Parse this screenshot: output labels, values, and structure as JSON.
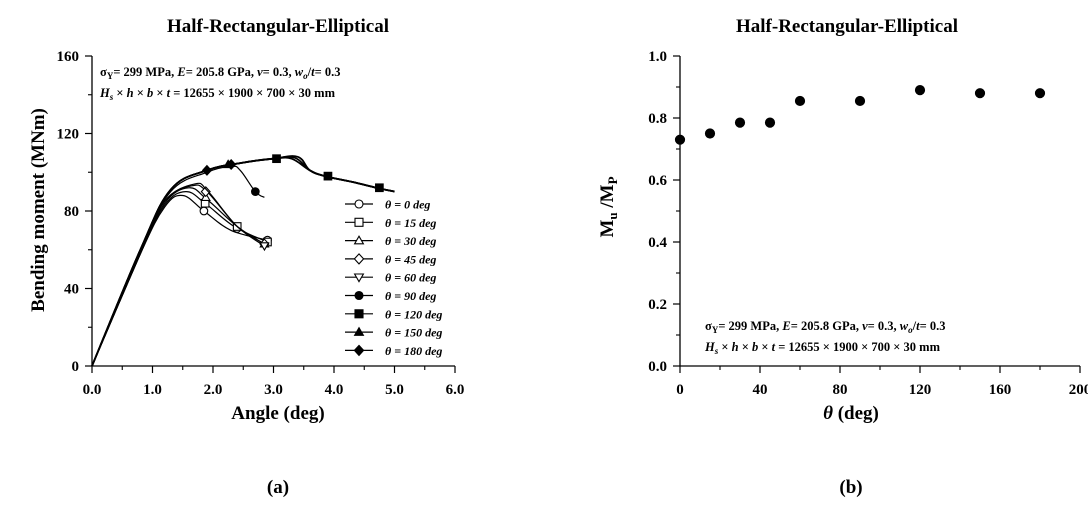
{
  "chart_data": [
    {
      "id": "a",
      "type": "line",
      "title": "Half-Rectangular-Elliptical",
      "xlabel": "Angle (deg)",
      "ylabel": "Bending moment (MNm)",
      "caption": "(a)",
      "xlim": [
        0,
        6
      ],
      "ylim": [
        0,
        160
      ],
      "xticks": [
        0,
        1,
        2,
        3,
        4,
        5,
        6
      ],
      "xtick_labels": [
        "0.0",
        "1.0",
        "2.0",
        "3.0",
        "4.0",
        "5.0",
        "6.0"
      ],
      "yticks": [
        0,
        40,
        80,
        120,
        160
      ],
      "ytick_labels": [
        "0",
        "40",
        "80",
        "120",
        "160"
      ],
      "annotation": [
        "σY= 299 MPa, E= 205.8 GPa, ν= 0.3, wo/t= 0.3",
        "Hs × h × b × t = 12655 × 1900 × 700 × 30 mm"
      ],
      "legend_position": "right",
      "series": [
        {
          "name": "θ = 0 deg",
          "marker": "circle-open",
          "x": [
            0,
            0.8,
            1.2,
            1.5,
            1.85,
            2.3,
            2.9
          ],
          "y": [
            0,
            58,
            82,
            88,
            80,
            70,
            65
          ],
          "marker_x": [
            1.85,
            2.4,
            2.9
          ],
          "marker_y": [
            80,
            71,
            65
          ]
        },
        {
          "name": "θ = 15 deg",
          "marker": "square-open",
          "x": [
            0,
            0.8,
            1.2,
            1.55,
            1.87,
            2.35,
            2.9
          ],
          "y": [
            0,
            58,
            83,
            90,
            84,
            72,
            64
          ],
          "marker_x": [
            1.87,
            2.4,
            2.9
          ],
          "marker_y": [
            84,
            72,
            64
          ]
        },
        {
          "name": "θ = 30 deg",
          "marker": "triangle-open",
          "x": [
            0,
            0.8,
            1.2,
            1.6,
            1.9,
            2.4,
            2.85
          ],
          "y": [
            0,
            58,
            84,
            92,
            86,
            72,
            63
          ],
          "marker_x": [
            1.88,
            2.85
          ],
          "marker_y": [
            87,
            63
          ]
        },
        {
          "name": "θ = 45 deg",
          "marker": "diamond-open",
          "x": [
            0,
            0.8,
            1.2,
            1.65,
            1.9,
            2.4,
            2.85
          ],
          "y": [
            0,
            58,
            85,
            93,
            90,
            72,
            63
          ],
          "marker_x": [
            1.88,
            2.85
          ],
          "marker_y": [
            90,
            63
          ]
        },
        {
          "name": "θ = 60 deg",
          "marker": "triangle-down-open",
          "x": [
            0,
            0.8,
            1.2,
            1.7,
            1.92,
            2.4,
            2.85
          ],
          "y": [
            0,
            58,
            85,
            94,
            90,
            72,
            62
          ],
          "marker_x": [
            2.85
          ],
          "marker_y": [
            62
          ]
        },
        {
          "name": "θ = 90 deg",
          "marker": "circle-filled",
          "x": [
            0,
            0.8,
            1.3,
            1.9,
            2.3,
            2.45,
            2.7,
            2.85
          ],
          "y": [
            0,
            60,
            90,
            100,
            103,
            101,
            90,
            87
          ],
          "marker_x": [
            2.7
          ],
          "marker_y": [
            90
          ]
        },
        {
          "name": "θ = 120 deg",
          "marker": "square-filled",
          "x": [
            0,
            0.8,
            1.3,
            1.9,
            2.5,
            3.0,
            3.3,
            3.6,
            3.85,
            4.3,
            4.7,
            5.0
          ],
          "y": [
            0,
            60,
            91,
            101,
            105,
            107,
            107,
            101,
            98,
            95,
            92,
            90
          ],
          "marker_x": [
            3.05,
            3.9,
            4.75
          ],
          "marker_y": [
            107,
            98,
            92
          ]
        },
        {
          "name": "θ = 150 deg",
          "marker": "triangle-filled",
          "x": [
            0,
            0.8,
            1.3,
            1.9,
            2.5,
            3.0,
            3.35,
            3.6,
            3.85,
            4.3,
            4.7,
            5.0
          ],
          "y": [
            0,
            60,
            91,
            101,
            105,
            107,
            107.5,
            101,
            98,
            95,
            92,
            90
          ],
          "marker_x": [
            2.25
          ],
          "marker_y": [
            104
          ]
        },
        {
          "name": "θ = 180 deg",
          "marker": "diamond-filled",
          "x": [
            0,
            0.8,
            1.3,
            1.9,
            2.5,
            3.0,
            3.4,
            3.6,
            3.85,
            4.3,
            4.7,
            5.0
          ],
          "y": [
            0,
            60,
            91,
            101,
            105,
            107,
            108,
            101,
            98,
            95,
            92,
            90
          ],
          "marker_x": [
            1.9,
            2.3
          ],
          "marker_y": [
            101,
            104
          ]
        }
      ]
    },
    {
      "id": "b",
      "type": "scatter",
      "title": "Half-Rectangular-Elliptical",
      "xlabel": "θ (deg)",
      "ylabel": "Mu /MP",
      "caption": "(b)",
      "xlim": [
        0,
        200
      ],
      "ylim": [
        0,
        1.0
      ],
      "xticks": [
        0,
        40,
        80,
        120,
        160,
        200
      ],
      "xtick_labels": [
        "0",
        "40",
        "80",
        "120",
        "160",
        "200"
      ],
      "yticks": [
        0,
        0.2,
        0.4,
        0.6,
        0.8,
        1.0
      ],
      "ytick_labels": [
        "0.0",
        "0.2",
        "0.4",
        "0.6",
        "0.8",
        "1.0"
      ],
      "annotation": [
        "σY= 299 MPa, E= 205.8 GPa, ν= 0.3, wo/t= 0.3",
        "Hs × h × b × t = 12655 × 1900 × 700 × 30 mm"
      ],
      "x": [
        0,
        15,
        30,
        45,
        60,
        90,
        120,
        150,
        180
      ],
      "y": [
        0.73,
        0.75,
        0.785,
        0.785,
        0.855,
        0.855,
        0.89,
        0.88,
        0.88
      ]
    }
  ]
}
